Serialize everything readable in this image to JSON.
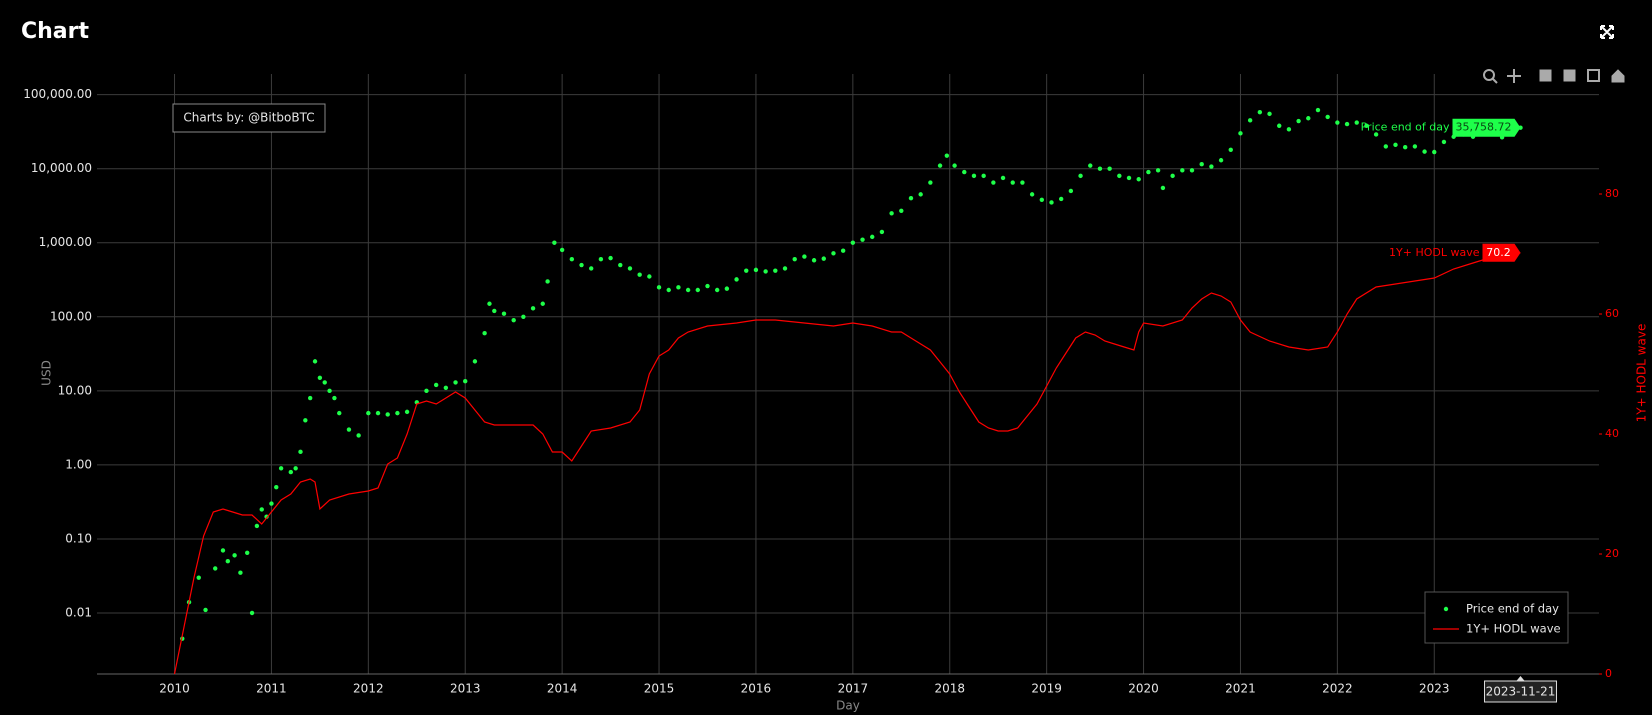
{
  "title": "Chart",
  "chart_data": {
    "type": "combo",
    "watermark": "Charts by: @BitboBTC",
    "x_label": "Day",
    "y_label": "USD",
    "y2_label": "1Y+ HODL wave",
    "ylog": true,
    "grid": true,
    "legend": "bottom-right",
    "crosshair_date": "2023-11-21",
    "xlim": [
      2009.2,
      2024.7
    ],
    "xticks": [
      2010,
      2011,
      2012,
      2013,
      2014,
      2015,
      2016,
      2017,
      2018,
      2019,
      2020,
      2021,
      2022,
      2023
    ],
    "ylim": [
      0.0015,
      190000
    ],
    "yticks": [
      0.01,
      {
        "value": 0.1,
        "label": "0.10"
      },
      {
        "value": 1,
        "label": "1.00"
      },
      {
        "value": 10,
        "label": "10.00"
      },
      {
        "value": 100,
        "label": "100.00"
      },
      {
        "value": 1000,
        "label": "1,000.00"
      },
      {
        "value": 10000,
        "label": "10,000.00"
      },
      {
        "value": 100000,
        "label": "100,000.00"
      }
    ],
    "y2lim": [
      0,
      100
    ],
    "y2ticks": [
      0,
      20,
      40,
      60,
      80
    ],
    "series": [
      {
        "name": "Price end of day",
        "type": "scatter",
        "color": "#1eff4a",
        "last_value_label": "35,758.72",
        "x": [
          2010.08,
          2010.15,
          2010.25,
          2010.32,
          2010.42,
          2010.5,
          2010.55,
          2010.62,
          2010.68,
          2010.75,
          2010.8,
          2010.85,
          2010.9,
          2010.95,
          2011.0,
          2011.05,
          2011.1,
          2011.2,
          2011.25,
          2011.3,
          2011.35,
          2011.4,
          2011.45,
          2011.5,
          2011.55,
          2011.6,
          2011.65,
          2011.7,
          2011.8,
          2011.9,
          2012.0,
          2012.1,
          2012.2,
          2012.3,
          2012.4,
          2012.5,
          2012.6,
          2012.7,
          2012.8,
          2012.9,
          2013.0,
          2013.1,
          2013.2,
          2013.25,
          2013.3,
          2013.4,
          2013.5,
          2013.6,
          2013.7,
          2013.8,
          2013.85,
          2013.92,
          2014.0,
          2014.1,
          2014.2,
          2014.3,
          2014.4,
          2014.5,
          2014.6,
          2014.7,
          2014.8,
          2014.9,
          2015.0,
          2015.1,
          2015.2,
          2015.3,
          2015.4,
          2015.5,
          2015.6,
          2015.7,
          2015.8,
          2015.9,
          2016.0,
          2016.1,
          2016.2,
          2016.3,
          2016.4,
          2016.5,
          2016.6,
          2016.7,
          2016.8,
          2016.9,
          2017.0,
          2017.1,
          2017.2,
          2017.3,
          2017.4,
          2017.5,
          2017.6,
          2017.7,
          2017.8,
          2017.9,
          2017.97,
          2018.05,
          2018.15,
          2018.25,
          2018.35,
          2018.45,
          2018.55,
          2018.65,
          2018.75,
          2018.85,
          2018.95,
          2019.05,
          2019.15,
          2019.25,
          2019.35,
          2019.45,
          2019.55,
          2019.65,
          2019.75,
          2019.85,
          2019.95,
          2020.05,
          2020.15,
          2020.2,
          2020.3,
          2020.4,
          2020.5,
          2020.6,
          2020.7,
          2020.8,
          2020.9,
          2021.0,
          2021.1,
          2021.2,
          2021.3,
          2021.4,
          2021.5,
          2021.6,
          2021.7,
          2021.8,
          2021.9,
          2022.0,
          2022.1,
          2022.2,
          2022.3,
          2022.4,
          2022.5,
          2022.6,
          2022.7,
          2022.8,
          2022.9,
          2023.0,
          2023.1,
          2023.2,
          2023.3,
          2023.4,
          2023.5,
          2023.6,
          2023.7,
          2023.8,
          2023.89
        ],
        "values": [
          0.0045,
          0.014,
          0.03,
          0.011,
          0.04,
          0.07,
          0.05,
          0.06,
          0.035,
          0.065,
          0.01,
          0.15,
          0.25,
          0.2,
          0.3,
          0.5,
          0.9,
          0.8,
          0.9,
          1.5,
          4,
          8,
          25,
          15,
          13,
          10,
          8,
          5,
          3,
          2.5,
          5,
          5,
          4.8,
          5,
          5.2,
          7,
          10,
          12,
          11,
          13,
          13.5,
          25,
          60,
          150,
          120,
          110,
          90,
          100,
          130,
          150,
          300,
          1000,
          800,
          600,
          500,
          450,
          600,
          620,
          500,
          450,
          370,
          350,
          250,
          230,
          250,
          230,
          230,
          260,
          230,
          240,
          320,
          420,
          430,
          410,
          420,
          450,
          600,
          650,
          580,
          610,
          720,
          780,
          1000,
          1100,
          1200,
          1400,
          2500,
          2700,
          4000,
          4500,
          6500,
          11000,
          15000,
          11000,
          9000,
          8000,
          8000,
          6500,
          7500,
          6500,
          6500,
          4500,
          3800,
          3500,
          3900,
          5000,
          8000,
          11000,
          10000,
          10000,
          8000,
          7500,
          7200,
          9000,
          9500,
          5500,
          8000,
          9500,
          9500,
          11500,
          10700,
          13000,
          18000,
          30000,
          45000,
          58000,
          55000,
          38000,
          34000,
          44000,
          48000,
          62000,
          50000,
          42000,
          40000,
          42000,
          38000,
          29000,
          20000,
          21000,
          19500,
          20000,
          17000,
          16800,
          23000,
          27000,
          29000,
          27000,
          30000,
          29500,
          26500,
          34000,
          35758.72
        ]
      },
      {
        "name": "1Y+ HODL wave",
        "type": "line",
        "axis": "y2",
        "color": "#ff0000",
        "x": [
          2010.0,
          2010.1,
          2010.2,
          2010.3,
          2010.4,
          2010.5,
          2010.6,
          2010.7,
          2010.8,
          2010.9,
          2011.0,
          2011.1,
          2011.2,
          2011.3,
          2011.4,
          2011.45,
          2011.5,
          2011.6,
          2011.8,
          2012.0,
          2012.1,
          2012.2,
          2012.3,
          2012.4,
          2012.5,
          2012.6,
          2012.7,
          2012.8,
          2012.9,
          2013.0,
          2013.1,
          2013.2,
          2013.3,
          2013.5,
          2013.7,
          2013.8,
          2013.9,
          2014.0,
          2014.1,
          2014.2,
          2014.3,
          2014.5,
          2014.7,
          2014.8,
          2014.9,
          2015.0,
          2015.1,
          2015.2,
          2015.3,
          2015.5,
          2015.8,
          2016.0,
          2016.2,
          2016.5,
          2016.8,
          2017.0,
          2017.2,
          2017.4,
          2017.5,
          2017.6,
          2017.8,
          2017.9,
          2018.0,
          2018.1,
          2018.2,
          2018.3,
          2018.4,
          2018.5,
          2018.6,
          2018.7,
          2018.8,
          2018.9,
          2019.0,
          2019.1,
          2019.2,
          2019.3,
          2019.4,
          2019.5,
          2019.6,
          2019.7,
          2019.8,
          2019.9,
          2019.95,
          2020.0,
          2020.2,
          2020.4,
          2020.5,
          2020.6,
          2020.7,
          2020.8,
          2020.9,
          2021.0,
          2021.1,
          2021.3,
          2021.5,
          2021.7,
          2021.9,
          2022.0,
          2022.1,
          2022.2,
          2022.4,
          2022.6,
          2022.8,
          2023.0,
          2023.2,
          2023.4,
          2023.6,
          2023.89
        ],
        "values": [
          0,
          8,
          16,
          23,
          27,
          27.5,
          27,
          26.5,
          26.5,
          25,
          27,
          29,
          30,
          32,
          32.5,
          32,
          27.5,
          29,
          30,
          30.5,
          31,
          35,
          36,
          40,
          45,
          45.5,
          45,
          46,
          47,
          46,
          44,
          42,
          41.5,
          41.5,
          41.5,
          40,
          37,
          37,
          35.5,
          38,
          40.5,
          41,
          42,
          44,
          50,
          53,
          54,
          56,
          57,
          58,
          58.5,
          59,
          59,
          58.5,
          58,
          58.5,
          58,
          57,
          57,
          56,
          54,
          52,
          50,
          47,
          44.5,
          42,
          41,
          40.5,
          40.5,
          41,
          43,
          45,
          48,
          51,
          53.5,
          56,
          57,
          56.5,
          55.5,
          55,
          54.5,
          54,
          57,
          58.5,
          58,
          59,
          61,
          62.5,
          63.5,
          63,
          62,
          59,
          57,
          55.5,
          54.5,
          54,
          54.5,
          57,
          60,
          62.5,
          64.5,
          65,
          65.5,
          66,
          67.5,
          68.5,
          69.5,
          70.2
        ]
      }
    ]
  }
}
